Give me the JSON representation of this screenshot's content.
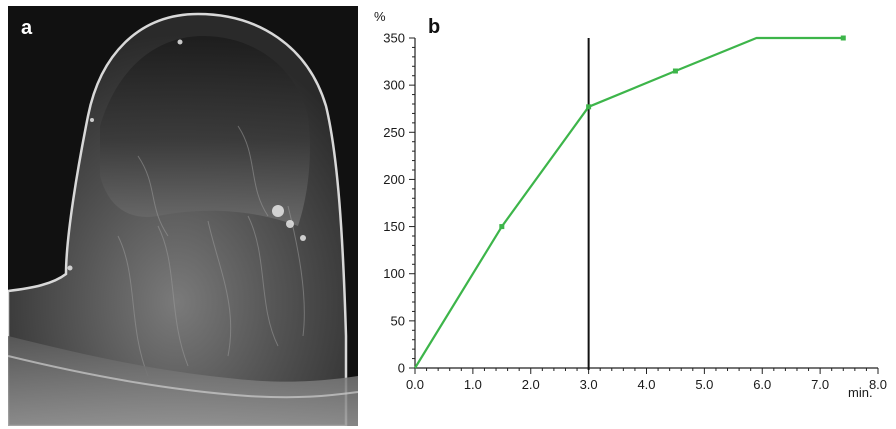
{
  "panels": {
    "a": {
      "letter": "a"
    },
    "b": {
      "letter": "b"
    }
  },
  "chart_data": {
    "type": "line",
    "title": "",
    "xlabel": "min.",
    "ylabel": "%",
    "xlim": [
      0,
      8.0
    ],
    "ylim": [
      0,
      350
    ],
    "xticks": [
      "0.0",
      "1.0",
      "2.0",
      "3.0",
      "4.0",
      "5.0",
      "6.0",
      "7.0",
      "8.0"
    ],
    "yticks": [
      "0",
      "50",
      "100",
      "150",
      "200",
      "250",
      "300",
      "350"
    ],
    "reference_line_x": 3.0,
    "series": [
      {
        "color": "#3db54a",
        "x": [
          0.0,
          1.5,
          3.0,
          4.5,
          5.9,
          7.4
        ],
        "y": [
          0,
          150,
          277,
          315,
          350,
          350
        ],
        "markers_at": [
          1.5,
          3.0,
          4.5,
          7.4
        ]
      }
    ],
    "colors": {
      "series": "#3db54a",
      "reference_line": "#111111",
      "axes": "#222222"
    }
  }
}
